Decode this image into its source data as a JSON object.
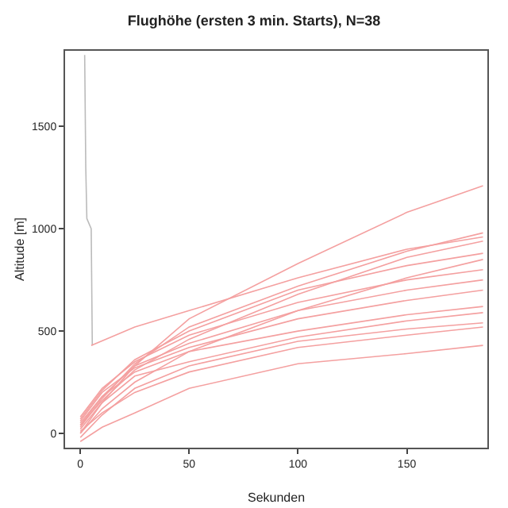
{
  "chart_data": {
    "type": "line",
    "title": "Flughöhe (ersten 3 min. Starts), N=38",
    "xlabel": "Sekunden",
    "ylabel": "Altitude [m]",
    "xlim": [
      -7,
      187
    ],
    "xticks": [
      0,
      50,
      100,
      150
    ],
    "ylim": [
      -70,
      1870
    ],
    "yticks": [
      0,
      500,
      1000,
      1500
    ],
    "grid": false,
    "marker": "none",
    "line_style": "solid",
    "series": [
      {
        "color": "#bbbbbb",
        "x": [
          2,
          2.5,
          3,
          5,
          5.5
        ],
        "values": [
          1850,
          1300,
          1050,
          1000,
          430
        ]
      },
      {
        "color": "#f4a0a0",
        "x": [
          0,
          10,
          25,
          50,
          100,
          150,
          185
        ],
        "values": [
          0,
          150,
          330,
          560,
          830,
          1080,
          1210
        ]
      },
      {
        "color": "#f4a0a0",
        "x": [
          5,
          25,
          50,
          100,
          150,
          185
        ],
        "values": [
          430,
          520,
          600,
          760,
          900,
          960
        ]
      },
      {
        "color": "#f4a0a0",
        "x": [
          0,
          10,
          25,
          50,
          100,
          150,
          185
        ],
        "values": [
          -40,
          30,
          100,
          220,
          340,
          390,
          430
        ]
      },
      {
        "color": "#f4a0a0",
        "x": [
          0,
          10,
          25,
          50,
          100,
          150,
          185
        ],
        "values": [
          50,
          180,
          300,
          400,
          500,
          580,
          620
        ]
      },
      {
        "color": "#f4a0a0",
        "x": [
          0,
          10,
          25,
          50,
          100,
          150,
          185
        ],
        "values": [
          20,
          150,
          280,
          350,
          470,
          550,
          590
        ]
      },
      {
        "color": "#f4a0a0",
        "x": [
          0,
          10,
          25,
          50,
          100,
          150,
          185
        ],
        "values": [
          60,
          200,
          320,
          420,
          560,
          650,
          700
        ]
      },
      {
        "color": "#f4a0a0",
        "x": [
          0,
          10,
          25,
          50,
          100,
          150,
          185
        ],
        "values": [
          80,
          220,
          350,
          480,
          640,
          750,
          800
        ]
      },
      {
        "color": "#f4a0a0",
        "x": [
          0,
          10,
          25,
          50,
          100,
          150,
          185
        ],
        "values": [
          0,
          120,
          250,
          400,
          600,
          760,
          850
        ]
      },
      {
        "color": "#f4a0a0",
        "x": [
          0,
          10,
          25,
          50,
          100,
          150,
          185
        ],
        "values": [
          30,
          170,
          340,
          520,
          720,
          890,
          980
        ]
      },
      {
        "color": "#f4a0a0",
        "x": [
          0,
          10,
          25,
          50,
          100,
          150,
          185
        ],
        "values": [
          -20,
          90,
          220,
          330,
          450,
          510,
          540
        ]
      },
      {
        "color": "#f4a0a0",
        "x": [
          0,
          10,
          25,
          50,
          100,
          150,
          185
        ],
        "values": [
          40,
          160,
          310,
          460,
          680,
          860,
          940
        ]
      },
      {
        "color": "#f4a0a0",
        "x": [
          0,
          10,
          25,
          50,
          100,
          150,
          185
        ],
        "values": [
          10,
          100,
          200,
          300,
          420,
          480,
          520
        ]
      },
      {
        "color": "#f4a0a0",
        "x": [
          0,
          10,
          25,
          50,
          100,
          150,
          185
        ],
        "values": [
          70,
          210,
          360,
          500,
          700,
          820,
          880
        ]
      },
      {
        "color": "#f4a0a0",
        "x": [
          0,
          10,
          25,
          50,
          100,
          150,
          185
        ],
        "values": [
          40,
          180,
          330,
          440,
          600,
          700,
          750
        ]
      }
    ]
  }
}
